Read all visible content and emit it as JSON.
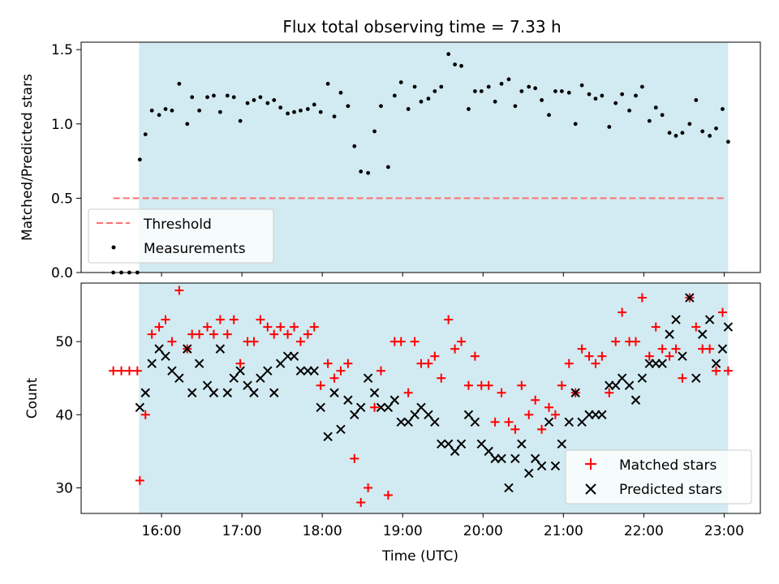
{
  "chart_data": [
    {
      "type": "scatter",
      "title": "Flux total observing time = 7.33 h",
      "ylabel": "Matched/Predicted stars",
      "xlabel": "",
      "xlim": [
        15.0,
        23.45
      ],
      "ylim": [
        0.0,
        1.55
      ],
      "yticks": [
        0.0,
        0.5,
        1.0,
        1.5
      ],
      "ytick_labels": [
        "0.0",
        "0.5",
        "1.0",
        "1.5"
      ],
      "observing_window": [
        15.72,
        23.05
      ],
      "threshold": {
        "label": "Threshold",
        "value": 0.5,
        "x_range": [
          15.4,
          23.0
        ],
        "color": "#ff7070"
      },
      "legend": {
        "placement": "lower-left",
        "entries": [
          "Threshold",
          "Measurements"
        ]
      },
      "series": [
        {
          "name": "Measurements",
          "color": "#000000",
          "x": [
            15.4,
            15.5,
            15.6,
            15.7,
            15.73,
            15.8,
            15.88,
            15.97,
            16.05,
            16.13,
            16.22,
            16.32,
            16.38,
            16.47,
            16.57,
            16.65,
            16.73,
            16.82,
            16.9,
            16.98,
            17.07,
            17.15,
            17.23,
            17.32,
            17.4,
            17.48,
            17.57,
            17.65,
            17.73,
            17.82,
            17.9,
            17.98,
            18.07,
            18.15,
            18.23,
            18.32,
            18.4,
            18.48,
            18.57,
            18.65,
            18.73,
            18.82,
            18.9,
            18.98,
            19.07,
            19.15,
            19.23,
            19.32,
            19.4,
            19.48,
            19.57,
            19.65,
            19.73,
            19.82,
            19.9,
            19.98,
            20.07,
            20.15,
            20.23,
            20.32,
            20.4,
            20.48,
            20.57,
            20.65,
            20.73,
            20.82,
            20.9,
            20.98,
            21.07,
            21.15,
            21.23,
            21.32,
            21.4,
            21.48,
            21.57,
            21.65,
            21.73,
            21.82,
            21.9,
            21.98,
            22.07,
            22.15,
            22.23,
            22.32,
            22.4,
            22.48,
            22.57,
            22.65,
            22.73,
            22.82,
            22.9,
            22.98,
            23.05
          ],
          "y": [
            0.0,
            0.0,
            0.0,
            0.0,
            0.76,
            0.93,
            1.09,
            1.06,
            1.1,
            1.09,
            1.27,
            1.0,
            1.18,
            1.09,
            1.18,
            1.19,
            1.08,
            1.19,
            1.18,
            1.02,
            1.14,
            1.16,
            1.18,
            1.14,
            1.16,
            1.11,
            1.07,
            1.08,
            1.09,
            1.1,
            1.13,
            1.08,
            1.27,
            1.05,
            1.21,
            1.12,
            0.85,
            0.68,
            0.67,
            0.95,
            1.12,
            0.71,
            1.19,
            1.28,
            1.1,
            1.25,
            1.15,
            1.17,
            1.22,
            1.25,
            1.47,
            1.4,
            1.39,
            1.1,
            1.22,
            1.22,
            1.25,
            1.15,
            1.27,
            1.3,
            1.12,
            1.22,
            1.25,
            1.24,
            1.16,
            1.06,
            1.22,
            1.22,
            1.21,
            1.0,
            1.26,
            1.2,
            1.17,
            1.19,
            0.98,
            1.14,
            1.2,
            1.09,
            1.19,
            1.25,
            1.02,
            1.11,
            1.06,
            0.94,
            0.92,
            0.94,
            1.0,
            1.16,
            0.95,
            0.92,
            0.97,
            1.1,
            0.88
          ]
        }
      ]
    },
    {
      "type": "scatter",
      "title": "",
      "ylabel": "Count",
      "xlabel": "Time (UTC)",
      "xlim": [
        15.0,
        23.45
      ],
      "ylim": [
        26.5,
        58
      ],
      "yticks": [
        30,
        40,
        50
      ],
      "ytick_labels": [
        "30",
        "40",
        "50"
      ],
      "xticks": [
        16,
        17,
        18,
        19,
        20,
        21,
        22,
        23
      ],
      "xtick_labels": [
        "16:00",
        "17:00",
        "18:00",
        "19:00",
        "20:00",
        "21:00",
        "22:00",
        "23:00"
      ],
      "observing_window": [
        15.72,
        23.05
      ],
      "legend": {
        "placement": "lower-right",
        "entries": [
          "Matched stars",
          "Predicted stars"
        ]
      },
      "series": [
        {
          "name": "Matched stars",
          "marker": "plus",
          "color": "#ff0000",
          "x": [
            15.4,
            15.5,
            15.6,
            15.7,
            15.73,
            15.8,
            15.88,
            15.97,
            16.05,
            16.13,
            16.22,
            16.32,
            16.38,
            16.47,
            16.57,
            16.65,
            16.73,
            16.82,
            16.9,
            16.98,
            17.07,
            17.15,
            17.23,
            17.32,
            17.4,
            17.48,
            17.57,
            17.65,
            17.73,
            17.82,
            17.9,
            17.98,
            18.07,
            18.15,
            18.23,
            18.32,
            18.4,
            18.48,
            18.57,
            18.65,
            18.73,
            18.82,
            18.9,
            18.98,
            19.07,
            19.15,
            19.23,
            19.32,
            19.4,
            19.48,
            19.57,
            19.65,
            19.73,
            19.82,
            19.9,
            19.98,
            20.07,
            20.15,
            20.23,
            20.32,
            20.4,
            20.48,
            20.57,
            20.65,
            20.73,
            20.82,
            20.9,
            20.98,
            21.07,
            21.15,
            21.23,
            21.32,
            21.4,
            21.48,
            21.57,
            21.65,
            21.73,
            21.82,
            21.9,
            21.98,
            22.07,
            22.15,
            22.23,
            22.32,
            22.4,
            22.48,
            22.57,
            22.65,
            22.73,
            22.82,
            22.9,
            22.98,
            23.05
          ],
          "y": [
            46,
            46,
            46,
            46,
            31,
            40,
            51,
            52,
            53,
            50,
            57,
            49,
            51,
            51,
            52,
            51,
            53,
            51,
            53,
            47,
            50,
            50,
            53,
            52,
            51,
            52,
            51,
            52,
            50,
            51,
            52,
            44,
            47,
            45,
            46,
            47,
            34,
            28,
            30,
            41,
            46,
            29,
            50,
            50,
            43,
            50,
            47,
            47,
            48,
            45,
            53,
            49,
            50,
            44,
            48,
            44,
            44,
            39,
            43,
            39,
            38,
            44,
            40,
            42,
            38,
            41,
            40,
            44,
            47,
            43,
            49,
            48,
            47,
            48,
            43,
            50,
            54,
            50,
            50,
            56,
            48,
            52,
            49,
            48,
            49,
            45,
            56,
            52,
            49,
            49,
            46,
            54,
            46
          ]
        },
        {
          "name": "Predicted stars",
          "marker": "x",
          "color": "#000000",
          "x": [
            15.73,
            15.8,
            15.88,
            15.97,
            16.05,
            16.13,
            16.22,
            16.32,
            16.38,
            16.47,
            16.57,
            16.65,
            16.73,
            16.82,
            16.9,
            16.98,
            17.07,
            17.15,
            17.23,
            17.32,
            17.4,
            17.48,
            17.57,
            17.65,
            17.73,
            17.82,
            17.9,
            17.98,
            18.07,
            18.15,
            18.23,
            18.32,
            18.4,
            18.48,
            18.57,
            18.65,
            18.73,
            18.82,
            18.9,
            18.98,
            19.07,
            19.15,
            19.23,
            19.32,
            19.4,
            19.48,
            19.57,
            19.65,
            19.73,
            19.82,
            19.9,
            19.98,
            20.07,
            20.15,
            20.23,
            20.32,
            20.4,
            20.48,
            20.57,
            20.65,
            20.73,
            20.82,
            20.9,
            20.98,
            21.07,
            21.15,
            21.23,
            21.32,
            21.4,
            21.48,
            21.57,
            21.65,
            21.73,
            21.82,
            21.9,
            21.98,
            22.07,
            22.15,
            22.23,
            22.32,
            22.4,
            22.48,
            22.57,
            22.65,
            22.73,
            22.82,
            22.9,
            22.98,
            23.05
          ],
          "y": [
            41,
            43,
            47,
            49,
            48,
            46,
            45,
            49,
            43,
            47,
            44,
            43,
            49,
            43,
            45,
            46,
            44,
            43,
            45,
            46,
            43,
            47,
            48,
            48,
            46,
            46,
            46,
            41,
            37,
            43,
            38,
            42,
            40,
            41,
            45,
            43,
            41,
            41,
            42,
            39,
            39,
            40,
            41,
            40,
            39,
            36,
            36,
            35,
            36,
            40,
            39,
            36,
            35,
            34,
            34,
            30,
            34,
            36,
            32,
            34,
            33,
            39,
            33,
            36,
            39,
            43,
            39,
            40,
            40,
            40,
            44,
            44,
            45,
            44,
            42,
            45,
            47,
            47,
            47,
            51,
            53,
            48,
            56,
            45,
            51,
            53,
            47,
            49,
            52
          ]
        }
      ]
    }
  ]
}
